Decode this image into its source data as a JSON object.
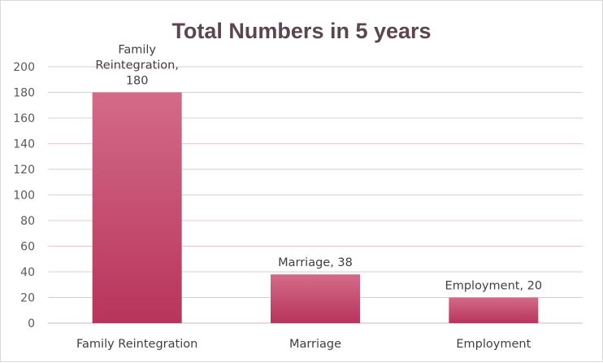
{
  "chart_data": {
    "type": "bar",
    "title": "Total Numbers in 5 years",
    "categories": [
      "Family Reintegration",
      "Marriage",
      "Employment"
    ],
    "values": [
      180,
      38,
      20
    ],
    "data_labels": [
      [
        "Family",
        "Reintegration,",
        "180"
      ],
      [
        "Marriage, 38"
      ],
      [
        "Employment, 20"
      ]
    ],
    "ylim": [
      0,
      200
    ],
    "yticks": [
      0,
      20,
      40,
      60,
      80,
      100,
      120,
      140,
      160,
      180,
      200
    ],
    "grid": true,
    "legend": "none",
    "bar_color_top": "#d36b88",
    "bar_color_bottom": "#b8345c"
  }
}
